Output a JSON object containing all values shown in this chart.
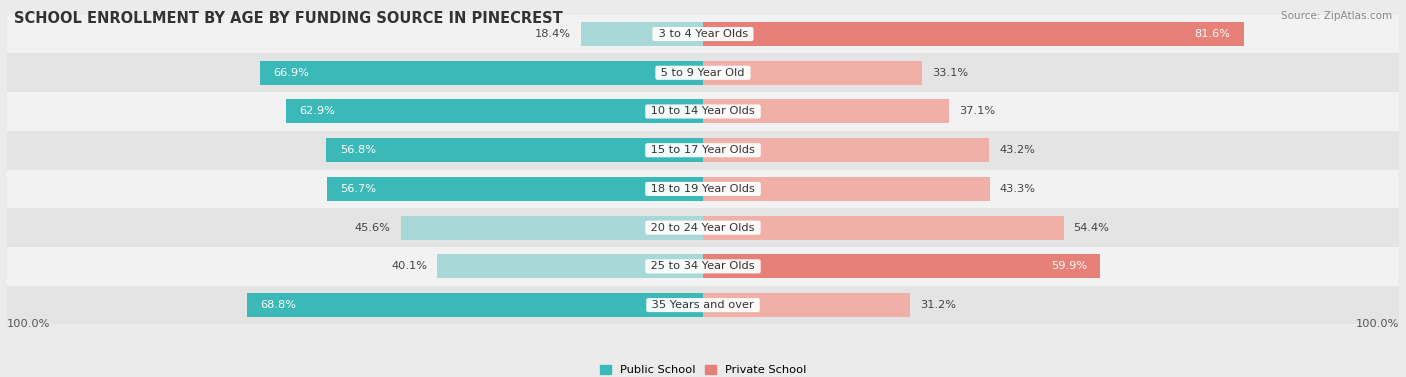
{
  "title": "SCHOOL ENROLLMENT BY AGE BY FUNDING SOURCE IN PINECREST",
  "source": "Source: ZipAtlas.com",
  "categories": [
    "3 to 4 Year Olds",
    "5 to 9 Year Old",
    "10 to 14 Year Olds",
    "15 to 17 Year Olds",
    "18 to 19 Year Olds",
    "20 to 24 Year Olds",
    "25 to 34 Year Olds",
    "35 Years and over"
  ],
  "public_values": [
    18.4,
    66.9,
    62.9,
    56.8,
    56.7,
    45.6,
    40.1,
    68.8
  ],
  "private_values": [
    81.6,
    33.1,
    37.1,
    43.2,
    43.3,
    54.4,
    59.9,
    31.2
  ],
  "public_color_strong": "#3bb8b8",
  "public_color_light": "#a8d8d8",
  "private_color_strong": "#e8807a",
  "private_color_light": "#f0b0a8",
  "row_color_light": "#f2f2f2",
  "row_color_dark": "#e4e4e4",
  "bg_color": "#ebebeb",
  "title_fontsize": 10.5,
  "label_fontsize": 8.2,
  "source_fontsize": 7.5,
  "bar_height": 0.62,
  "x_label": "100.0%"
}
